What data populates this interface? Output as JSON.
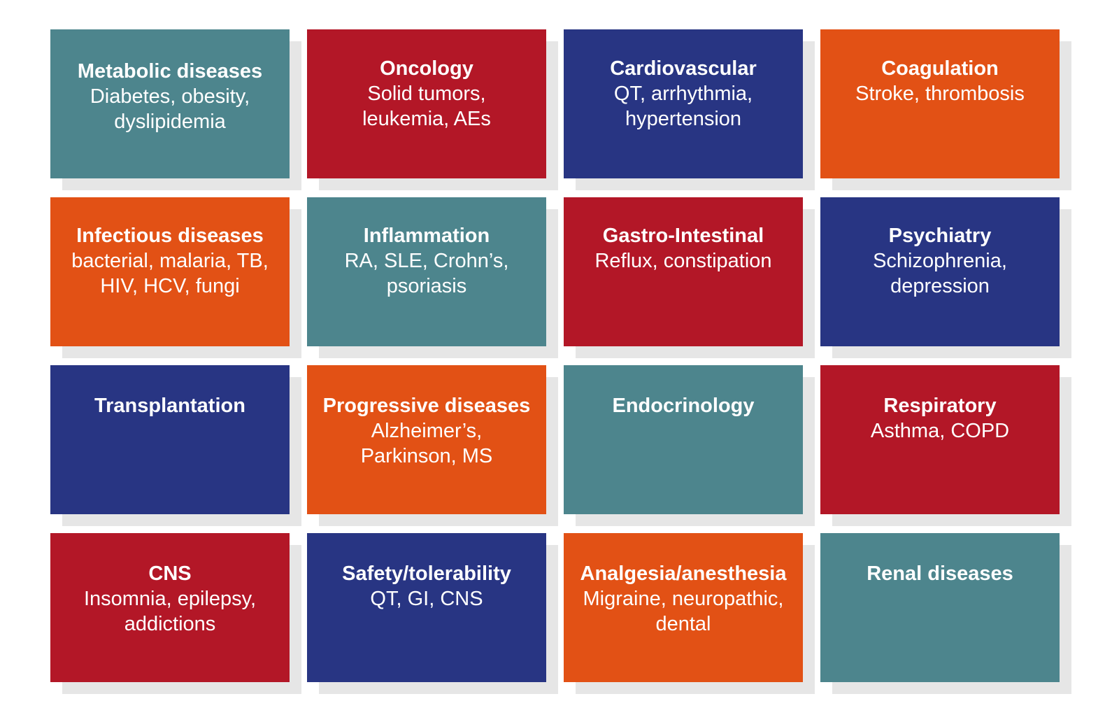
{
  "colors": {
    "teal": "#4d858d",
    "red": "#b31727",
    "navy": "#283583",
    "orange": "#e25115",
    "shadow": "#e6e6e6"
  },
  "tiles": [
    {
      "title": "Metabolic diseases",
      "sub": "Diabetes, obesity,\ndyslipidemia",
      "color": "#4d858d"
    },
    {
      "title": "Oncology",
      "sub": "Solid tumors,\nleukemia, AEs",
      "color": "#b31727"
    },
    {
      "title": "Cardiovascular",
      "sub": "QT, arrhythmia,\nhypertension",
      "color": "#283583"
    },
    {
      "title": "Coagulation",
      "sub": "Stroke, thrombosis",
      "color": "#e25115"
    },
    {
      "title": "Infectious diseases",
      "sub": "bacterial, malaria, TB,\nHIV, HCV, fungi",
      "color": "#e25115"
    },
    {
      "title": "Inflammation",
      "sub": "RA, SLE, Crohn’s,\npsoriasis",
      "color": "#4d858d"
    },
    {
      "title": "Gastro-Intestinal",
      "sub": "Reflux, constipation",
      "color": "#b31727"
    },
    {
      "title": "Psychiatry",
      "sub": "Schizophrenia,\ndepression",
      "color": "#283583"
    },
    {
      "title": "Transplantation",
      "sub": "",
      "color": "#283583"
    },
    {
      "title": "Progressive diseases",
      "sub": "Alzheimer’s,\nParkinson, MS",
      "color": "#e25115"
    },
    {
      "title": "Endocrinology",
      "sub": "",
      "color": "#4d858d"
    },
    {
      "title": "Respiratory",
      "sub": "Asthma, COPD",
      "color": "#b31727"
    },
    {
      "title": "CNS",
      "sub": "Insomnia, epilepsy,\naddictions",
      "color": "#b31727"
    },
    {
      "title": "Safety/tolerability",
      "sub": "QT, GI, CNS",
      "color": "#283583"
    },
    {
      "title": "Analgesia/anesthesia",
      "sub": "Migraine, neuropathic,\ndental",
      "color": "#e25115"
    },
    {
      "title": "Renal diseases",
      "sub": "",
      "color": "#4d858d"
    }
  ]
}
